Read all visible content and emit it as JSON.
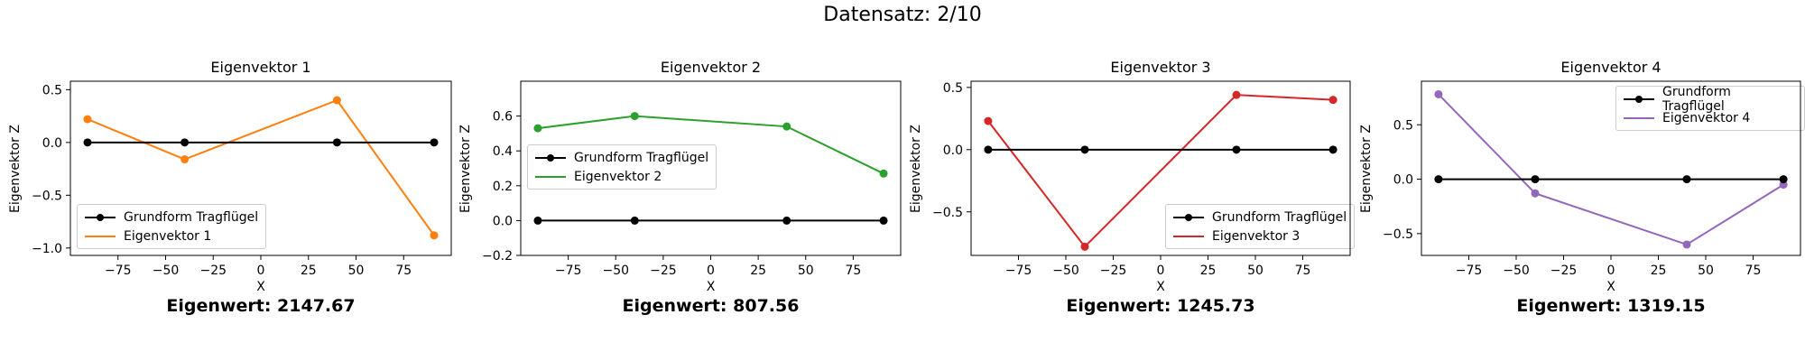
{
  "figure": {
    "suptitle": "Datensatz: 2/10"
  },
  "chart_data": [
    {
      "type": "line",
      "title": "Eigenvektor 1",
      "xlabel": "X",
      "ylabel": "Eigenvektor Z",
      "eigenvalue_label": "Eigenwert: 2147.67",
      "xlim": [
        -100,
        100
      ],
      "ylim": [
        -1.07,
        0.58
      ],
      "xticks": [
        -75,
        -50,
        -25,
        0,
        25,
        50,
        75
      ],
      "xtick_labels": [
        "−75",
        "−50",
        "−25",
        "0",
        "25",
        "50",
        "75"
      ],
      "yticks": [
        -1.0,
        -0.5,
        0.0,
        0.5
      ],
      "ytick_labels": [
        "−1.0",
        "−0.5",
        "0.0",
        "0.5"
      ],
      "legend_position": "lower-left",
      "series": [
        {
          "name": "Grundform Tragflügel",
          "color": "#000000",
          "marker": true,
          "x": [
            -91,
            -40,
            40,
            91
          ],
          "y": [
            0.0,
            0.0,
            0.0,
            0.0
          ]
        },
        {
          "name": "Eigenvektor 1",
          "color": "#ff7f0e",
          "marker": false,
          "x": [
            -91,
            -40,
            40,
            91
          ],
          "y": [
            0.22,
            -0.16,
            0.4,
            -0.88
          ]
        }
      ]
    },
    {
      "type": "line",
      "title": "Eigenvektor 2",
      "xlabel": "X",
      "ylabel": "Eigenvektor Z",
      "eigenvalue_label": "Eigenwert: 807.56",
      "xlim": [
        -100,
        100
      ],
      "ylim": [
        -0.2,
        0.8
      ],
      "xticks": [
        -75,
        -50,
        -25,
        0,
        25,
        50,
        75
      ],
      "xtick_labels": [
        "−75",
        "−50",
        "−25",
        "0",
        "25",
        "50",
        "75"
      ],
      "yticks": [
        -0.2,
        0.0,
        0.2,
        0.4,
        0.6
      ],
      "ytick_labels": [
        "−0.2",
        "0.0",
        "0.2",
        "0.4",
        "0.6"
      ],
      "legend_position": "center-left",
      "series": [
        {
          "name": "Grundform Tragflügel",
          "color": "#000000",
          "marker": true,
          "x": [
            -91,
            -40,
            40,
            91
          ],
          "y": [
            0.0,
            0.0,
            0.0,
            0.0
          ]
        },
        {
          "name": "Eigenvektor 2",
          "color": "#2ca02c",
          "marker": false,
          "x": [
            -91,
            -40,
            40,
            91
          ],
          "y": [
            0.53,
            0.6,
            0.54,
            0.27
          ]
        }
      ]
    },
    {
      "type": "line",
      "title": "Eigenvektor 3",
      "xlabel": "X",
      "ylabel": "Eigenvektor Z",
      "eigenvalue_label": "Eigenwert: 1245.73",
      "xlim": [
        -100,
        100
      ],
      "ylim": [
        -0.85,
        0.55
      ],
      "xticks": [
        -75,
        -50,
        -25,
        0,
        25,
        50,
        75
      ],
      "xtick_labels": [
        "−75",
        "−50",
        "−25",
        "0",
        "25",
        "50",
        "75"
      ],
      "yticks": [
        -0.5,
        0.0,
        0.5
      ],
      "ytick_labels": [
        "−0.5",
        "0.0",
        "0.5"
      ],
      "legend_position": "lower-right",
      "series": [
        {
          "name": "Grundform Tragflügel",
          "color": "#000000",
          "marker": true,
          "x": [
            -91,
            -40,
            40,
            91
          ],
          "y": [
            0.0,
            0.0,
            0.0,
            0.0
          ]
        },
        {
          "name": "Eigenvektor 3",
          "color": "#d62728",
          "marker": false,
          "x": [
            -91,
            -40,
            40,
            91
          ],
          "y": [
            0.23,
            -0.78,
            0.44,
            0.4
          ]
        }
      ]
    },
    {
      "type": "line",
      "title": "Eigenvektor 4",
      "xlabel": "X",
      "ylabel": "Eigenvektor Z",
      "eigenvalue_label": "Eigenwert: 1319.15",
      "xlim": [
        -100,
        100
      ],
      "ylim": [
        -0.7,
        0.9
      ],
      "xticks": [
        -75,
        -50,
        -25,
        0,
        25,
        50,
        75
      ],
      "xtick_labels": [
        "−75",
        "−50",
        "−25",
        "0",
        "25",
        "50",
        "75"
      ],
      "yticks": [
        -0.5,
        0.0,
        0.5
      ],
      "ytick_labels": [
        "−0.5",
        "0.0",
        "0.5"
      ],
      "legend_position": "upper-right",
      "series": [
        {
          "name": "Grundform Tragflügel",
          "color": "#000000",
          "marker": true,
          "x": [
            -91,
            -40,
            40,
            91
          ],
          "y": [
            0.0,
            0.0,
            0.0,
            0.0
          ]
        },
        {
          "name": "Eigenvektor 4",
          "color": "#9467bd",
          "marker": false,
          "x": [
            -91,
            -40,
            40,
            91
          ],
          "y": [
            0.78,
            -0.13,
            -0.6,
            -0.05
          ]
        }
      ]
    }
  ]
}
